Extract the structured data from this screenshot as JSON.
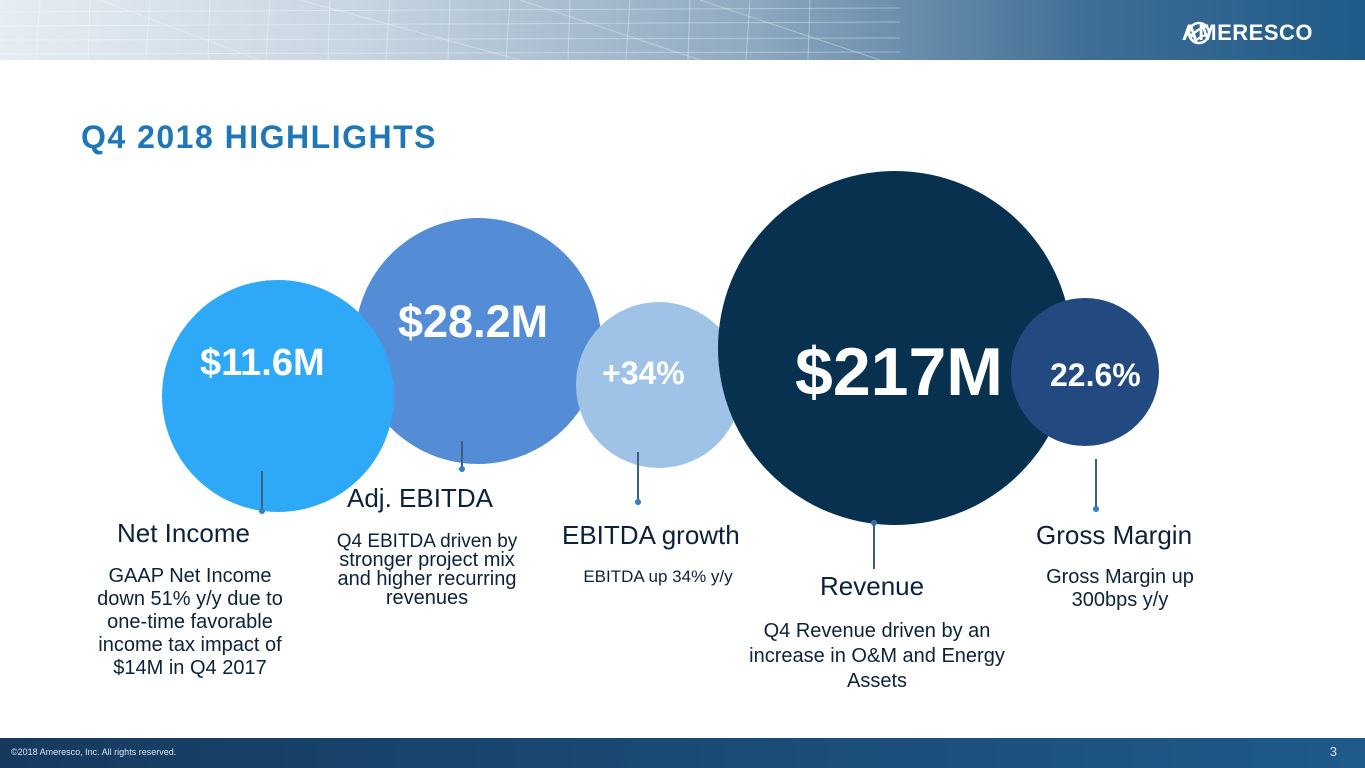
{
  "header": {
    "logo_text": "AMERESCO"
  },
  "slide": {
    "title": "Q4 2018 HIGHLIGHTS"
  },
  "highlights": {
    "net_income": {
      "value": "$11.6M",
      "label": "Net Income",
      "description": [
        "GAAP Net Income",
        "down 51% y/y due to",
        "one-time favorable",
        "income tax impact of",
        "$14M in Q4 2017"
      ]
    },
    "adj_ebitda": {
      "value": "$28.2M",
      "label": "Adj. EBITDA",
      "description": [
        "Q4 EBITDA driven by",
        "stronger project mix",
        "and higher recurring",
        "revenues"
      ]
    },
    "ebitda_growth": {
      "value": "+34%",
      "label": "EBITDA growth",
      "description": [
        "EBITDA up 34% y/y"
      ]
    },
    "revenue": {
      "value": "$217M",
      "label": "Revenue",
      "description": [
        "Q4 Revenue driven by an",
        "increase in O&M and Energy",
        "Assets"
      ]
    },
    "gross_margin": {
      "value": "22.6%",
      "label": "Gross Margin",
      "description": [
        "Gross Margin up",
        "300bps y/y"
      ]
    }
  },
  "footer": {
    "copyright": "©2018 Ameresco, Inc. All rights reserved.",
    "page_number": "3"
  },
  "colors": {
    "title_blue": "#1f77b8",
    "net_income_circle": "#2ea9f7",
    "adj_ebitda_circle": "#548dd6",
    "ebitda_growth_circle": "#9ec3e6",
    "revenue_circle": "#08304f",
    "gross_margin_circle": "#224a80"
  }
}
